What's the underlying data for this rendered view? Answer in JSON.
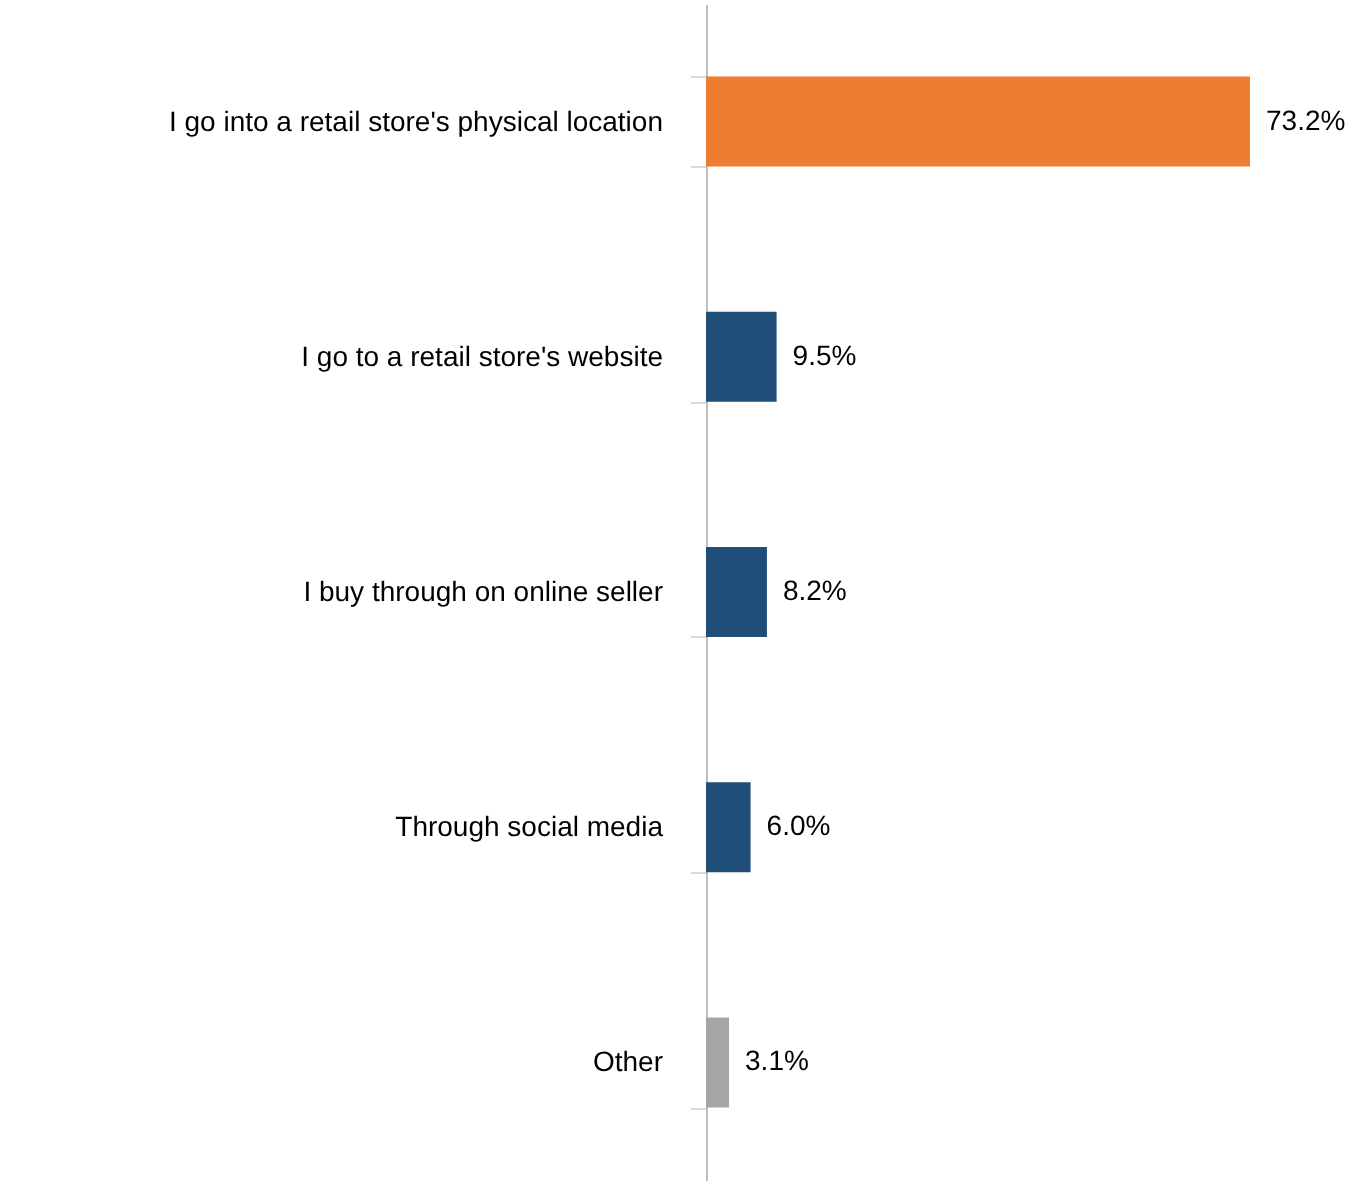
{
  "chart_data": {
    "type": "bar",
    "orientation": "horizontal",
    "categories": [
      "I go into a retail store's physical location",
      "I go to a retail store's website",
      "I buy through on online seller",
      "Through social media",
      "Other"
    ],
    "values": [
      73.2,
      9.5,
      8.2,
      6.0,
      3.1
    ],
    "colors": [
      "#ed7d31",
      "#1f4e79",
      "#1f4e79",
      "#1f4e79",
      "#a5a5a5"
    ],
    "value_labels": [
      "73.2%",
      "9.5%",
      "8.2%",
      "6.0%",
      "3.1%"
    ],
    "grid": false
  }
}
